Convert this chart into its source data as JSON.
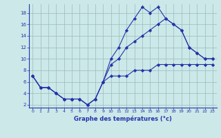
{
  "xlabel": "Graphe des températures (°c)",
  "background_color": "#cce8e8",
  "line_color": "#2233aa",
  "grid_color": "#99bbbb",
  "xlim": [
    -0.5,
    23.5
  ],
  "ylim": [
    1.5,
    19.5
  ],
  "xticks": [
    0,
    1,
    2,
    3,
    4,
    5,
    6,
    7,
    8,
    9,
    10,
    11,
    12,
    13,
    14,
    15,
    16,
    17,
    18,
    19,
    20,
    21,
    22,
    23
  ],
  "yticks": [
    2,
    4,
    6,
    8,
    10,
    12,
    14,
    16,
    18
  ],
  "series": [
    {
      "x": [
        0,
        1,
        2,
        3,
        4,
        5,
        6,
        7,
        8,
        9,
        10,
        11,
        12,
        13,
        14,
        15,
        16,
        17,
        18,
        19,
        20,
        21,
        22,
        23
      ],
      "y": [
        7,
        5,
        5,
        4,
        3,
        3,
        3,
        2,
        3,
        6,
        10,
        12,
        15,
        17,
        19,
        18,
        19,
        17,
        16,
        15,
        12,
        11,
        10,
        10
      ]
    },
    {
      "x": [
        0,
        1,
        2,
        3,
        4,
        5,
        6,
        7,
        8,
        9,
        10,
        11,
        12,
        13,
        14,
        15,
        16,
        17,
        18,
        19,
        20,
        21,
        22,
        23
      ],
      "y": [
        7,
        5,
        5,
        4,
        3,
        3,
        3,
        2,
        3,
        6,
        9,
        10,
        12,
        13,
        14,
        15,
        16,
        17,
        16,
        15,
        12,
        11,
        10,
        10
      ]
    },
    {
      "x": [
        0,
        1,
        2,
        3,
        4,
        5,
        6,
        7,
        8,
        9,
        10,
        11,
        12,
        13,
        14,
        15,
        16,
        17,
        18,
        19,
        20,
        21,
        22,
        23
      ],
      "y": [
        7,
        5,
        5,
        4,
        3,
        3,
        3,
        2,
        3,
        6,
        7,
        7,
        7,
        8,
        8,
        8,
        9,
        9,
        9,
        9,
        9,
        9,
        9,
        9
      ]
    }
  ]
}
